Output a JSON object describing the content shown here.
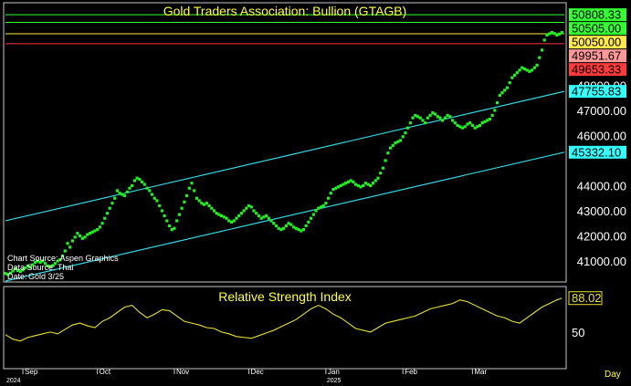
{
  "colors": {
    "background": "#000000",
    "frame": "#c8c8c8",
    "price_dots": "#22ee22",
    "channel": "#33d6e0",
    "rsi_line": "#e8e030",
    "title_text": "#ffff40",
    "tick_text": "#ffffff",
    "level_green": "#33ff33",
    "level_yellow": "#ffe84a",
    "level_red": "#ff3a3a",
    "level_pink": "#ff9999",
    "level_cyan": "#33ffff"
  },
  "chart_data": [
    {
      "type": "scatter",
      "title": "Gold Traders Association: Bullion (GTAGB)",
      "y_ticks": [
        "41000.00",
        "42000.00",
        "43000.00",
        "44000.00",
        "46000.00",
        "47000.00",
        "48000.00"
      ],
      "ylim": [
        40200,
        51250
      ],
      "x_range_days": [
        0,
        225
      ],
      "level_tags": [
        {
          "label": "50808.33",
          "value": 50808.33,
          "color": "#33ff33",
          "text_color": "#000000",
          "line": true
        },
        {
          "label": "50505.00",
          "value": 50505.0,
          "color": "#33ff33",
          "text_color": "#000000",
          "line": true
        },
        {
          "label": "50050.00",
          "value": 50050.0,
          "color": "#ffe84a",
          "text_color": "#000000",
          "line": true
        },
        {
          "label": "49951.67",
          "value": 49951.67,
          "color": "#ff9999",
          "text_color": "#000000",
          "line": false
        },
        {
          "label": "49653.33",
          "value": 49653.33,
          "color": "#ff3a3a",
          "text_color": "#000000",
          "line": true
        },
        {
          "label": "47755.83",
          "value": 47755.83,
          "color": "#33ffff",
          "text_color": "#000000",
          "line": false
        },
        {
          "label": "45332.10",
          "value": 45332.1,
          "color": "#33ffff",
          "text_color": "#000000",
          "line": false
        }
      ],
      "channel_lines": [
        {
          "x": [
            0,
            225
          ],
          "y": [
            42600,
            47755.83
          ]
        },
        {
          "x": [
            0,
            225
          ],
          "y": [
            40200,
            45332.1
          ]
        }
      ],
      "source_notes": [
        "Chart Source: Aspen Graphics",
        "Data Source: Thai",
        "Date: "
      ],
      "date_text": "Gold 3/25",
      "x": [
        0,
        1,
        2,
        3,
        4,
        5,
        6,
        7,
        8,
        9,
        10,
        11,
        12,
        13,
        14,
        15,
        16,
        17,
        18,
        19,
        20,
        21,
        22,
        23,
        24,
        25,
        26,
        27,
        28,
        29,
        30,
        31,
        32,
        33,
        34,
        35,
        36,
        37,
        38,
        39,
        40,
        41,
        42,
        43,
        44,
        45,
        46,
        47,
        48,
        49,
        50,
        51,
        52,
        53,
        54,
        55,
        56,
        57,
        58,
        59,
        60,
        61,
        62,
        63,
        64,
        65,
        66,
        67,
        68,
        69,
        70,
        71,
        72,
        73,
        74,
        75,
        76,
        77,
        78,
        79,
        80,
        81,
        82,
        83,
        84,
        85,
        86,
        87,
        88,
        89,
        90,
        91,
        92,
        93,
        94,
        95,
        96,
        97,
        98,
        99,
        100,
        101,
        102,
        103,
        104,
        105,
        106,
        107,
        108,
        109,
        110,
        111,
        112,
        113,
        114,
        115,
        116,
        117,
        118,
        119,
        120,
        121,
        122,
        123,
        124,
        125,
        126,
        127,
        128,
        129,
        130,
        131,
        132,
        133,
        134,
        135,
        136,
        137,
        138,
        139,
        140,
        141,
        142,
        143,
        144,
        145,
        146,
        147,
        148,
        149,
        150,
        151,
        152,
        153,
        154,
        155,
        156,
        157,
        158,
        159,
        160,
        161,
        162,
        163,
        164,
        165,
        166,
        167,
        168,
        169,
        170,
        171,
        172,
        173,
        174,
        175,
        176,
        177,
        178,
        179,
        180,
        181,
        182,
        183,
        184,
        185,
        186,
        187,
        188,
        189,
        190,
        191,
        192,
        193,
        194,
        195,
        196,
        197,
        198,
        199,
        200,
        201,
        202,
        203,
        204,
        205,
        206,
        207,
        208,
        209,
        210,
        211,
        212,
        213,
        214,
        215,
        216,
        217,
        218,
        219,
        220,
        221,
        222,
        223,
        224
      ],
      "y": [
        40500,
        40460,
        40520,
        40600,
        40700,
        40620,
        40580,
        40640,
        40720,
        40800,
        40750,
        40850,
        40950,
        41000,
        40950,
        41000,
        40900,
        40800,
        40780,
        40820,
        40900,
        41000,
        41050,
        41200,
        41400,
        41700,
        41550,
        41800,
        41950,
        42100,
        42000,
        41900,
        41950,
        42050,
        42100,
        42150,
        42200,
        42250,
        42350,
        42500,
        42700,
        42900,
        43100,
        43300,
        43500,
        43800,
        43700,
        43650,
        43600,
        43750,
        43900,
        44000,
        44200,
        44300,
        44250,
        44150,
        44050,
        43900,
        43800,
        43650,
        43500,
        43400,
        43200,
        43000,
        42800,
        42600,
        42400,
        42250,
        42300,
        42600,
        42850,
        43100,
        43350,
        43600,
        43900,
        44100,
        43800,
        43500,
        43400,
        43300,
        43250,
        43300,
        43200,
        43100,
        43000,
        42900,
        42850,
        42800,
        42750,
        42700,
        42600,
        42550,
        42600,
        42700,
        42800,
        42900,
        43000,
        43100,
        43200,
        43150,
        43000,
        42900,
        42800,
        42700,
        42750,
        42800,
        42700,
        42600,
        42500,
        42400,
        42300,
        42250,
        42300,
        42400,
        42500,
        42450,
        42350,
        42300,
        42250,
        42200,
        42250,
        42400,
        42550,
        42700,
        42850,
        43000,
        43100,
        43150,
        43200,
        43300,
        43500,
        43700,
        43850,
        43900,
        43950,
        44000,
        44050,
        44100,
        44150,
        44200,
        44150,
        44050,
        44000,
        43950,
        44000,
        44100,
        44050,
        44000,
        44100,
        44200,
        44300,
        44500,
        44700,
        45000,
        45300,
        45500,
        45600,
        45700,
        45750,
        45800,
        45950,
        46100,
        46300,
        46500,
        46700,
        46800,
        46750,
        46700,
        46600,
        46500,
        46700,
        46800,
        46900,
        46850,
        46750,
        46700,
        46600,
        46700,
        46800,
        46750,
        46600,
        46500,
        46400,
        46350,
        46300,
        46350,
        46450,
        46500,
        46400,
        46300,
        46350,
        46400,
        46500,
        46550,
        46600,
        46650,
        46800,
        47000,
        47300,
        47600,
        47700,
        47800,
        47900,
        48100,
        48300,
        48400,
        48500,
        48600,
        48700,
        48650,
        48600,
        48550,
        48600,
        48700,
        48800,
        49100,
        49400,
        49800,
        50000,
        50050,
        50100,
        50060,
        50000,
        50040,
        50100
      ]
    },
    {
      "type": "line",
      "title": "Relative Strength Index",
      "y_ticks": [
        "50"
      ],
      "ylim": [
        10,
        100
      ],
      "last_value_tag": {
        "label": "88.02",
        "value": 88.02
      },
      "x": [
        0,
        3,
        6,
        9,
        12,
        15,
        18,
        21,
        24,
        27,
        30,
        33,
        36,
        39,
        42,
        45,
        48,
        51,
        54,
        57,
        60,
        63,
        66,
        69,
        72,
        75,
        78,
        81,
        84,
        87,
        90,
        93,
        96,
        99,
        102,
        105,
        108,
        111,
        114,
        117,
        120,
        123,
        126,
        129,
        132,
        135,
        138,
        141,
        144,
        147,
        150,
        153,
        156,
        159,
        162,
        165,
        168,
        171,
        174,
        177,
        180,
        183,
        186,
        189,
        192,
        195,
        198,
        201,
        204,
        207,
        210,
        213,
        216,
        219,
        222,
        224
      ],
      "y": [
        47,
        42,
        40,
        44,
        46,
        48,
        50,
        48,
        53,
        58,
        60,
        57,
        55,
        62,
        66,
        72,
        78,
        80,
        72,
        66,
        70,
        75,
        74,
        68,
        62,
        60,
        58,
        55,
        54,
        50,
        48,
        45,
        44,
        43,
        46,
        49,
        52,
        56,
        60,
        64,
        70,
        76,
        80,
        76,
        70,
        66,
        60,
        54,
        52,
        50,
        55,
        60,
        62,
        64,
        66,
        68,
        72,
        76,
        78,
        80,
        82,
        86,
        84,
        80,
        76,
        72,
        68,
        66,
        62,
        60,
        66,
        72,
        78,
        82,
        86,
        88.02
      ]
    }
  ],
  "x_axis": {
    "months": [
      {
        "label": "Sep",
        "day": 7
      },
      {
        "label": "Oct",
        "day": 37
      },
      {
        "label": "Nov",
        "day": 68
      },
      {
        "label": "Dec",
        "day": 98
      },
      {
        "label": "Jan",
        "day": 129
      },
      {
        "label": "Feb",
        "day": 160
      },
      {
        "label": "Mar",
        "day": 188
      }
    ],
    "year_labels": [
      {
        "label": "2024",
        "day": 0
      },
      {
        "label": "2025",
        "day": 129
      }
    ],
    "unit_label": "Day"
  }
}
